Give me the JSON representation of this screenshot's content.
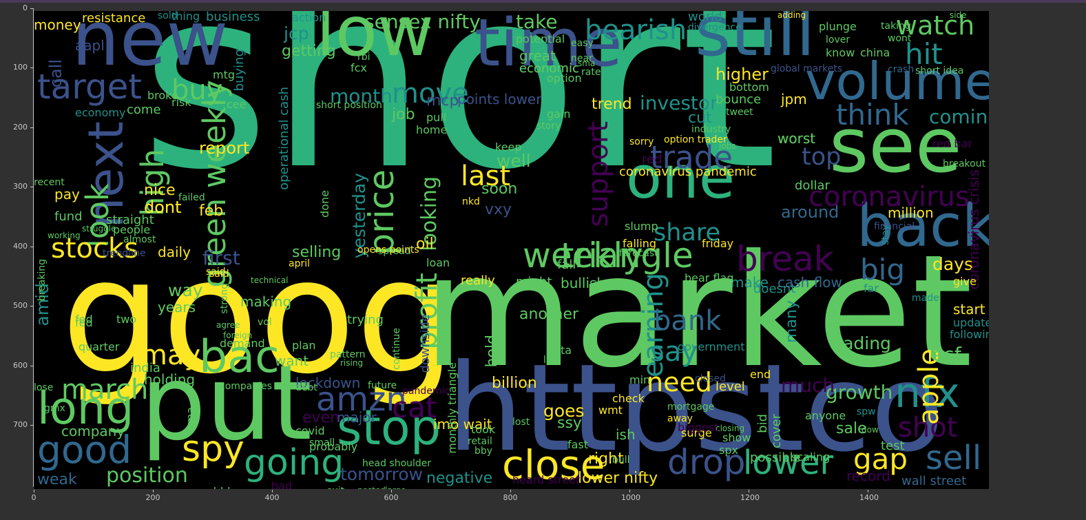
{
  "figure": {
    "background": "#000000",
    "palette": [
      "#440154",
      "#3b528b",
      "#21918c",
      "#5ec962",
      "#fde725"
    ],
    "x_ticks": [
      "0",
      "200",
      "400",
      "600",
      "800",
      "1000",
      "1200",
      "1400"
    ],
    "y_ticks": [
      "0",
      "100",
      "200",
      "300",
      "400",
      "500",
      "600",
      "700"
    ]
  },
  "words": [
    "short",
    "goog",
    "market",
    "httpstco",
    "put",
    "new",
    "low",
    "time",
    "still",
    "see",
    "one",
    "back",
    "volume",
    "next",
    "target",
    "weekly",
    "triangle",
    "stop",
    "close",
    "drop",
    "lower",
    "sell",
    "nfx",
    "amzn",
    "bac",
    "long",
    "good",
    "going",
    "spy",
    "march",
    "price",
    "profit",
    "earning",
    "support",
    "trade",
    "coronavirus",
    "break",
    "bearish",
    "watch",
    "hit",
    "think",
    "bank",
    "big",
    "shot",
    "gap",
    "apple",
    "look",
    "high",
    "green weekly",
    "buy",
    "move",
    "month",
    "stocks",
    "may",
    "position",
    "weak",
    "cat",
    "last",
    "looking",
    "sensex nifty",
    "take",
    "coming",
    "top",
    "share",
    "days",
    "say",
    "need",
    "trading",
    "growth",
    "esf",
    "lower nifty",
    "tomorrow",
    "negative",
    "right",
    "goes",
    "first",
    "daily",
    "report",
    "nice",
    "dont",
    "feb",
    "selling",
    "yesterday",
    "operational cash",
    "jcp",
    "getting",
    "money",
    "resistance",
    "investor",
    "trend",
    "cut",
    "higher",
    "worst",
    "around",
    "million",
    "coronavirus pandemic",
    "option trader",
    "cash flow",
    "make",
    "many",
    "much",
    "billion",
    "hold",
    "lockdown",
    "major",
    "even",
    "imo wait",
    "ssy",
    "wmt",
    "sale",
    "test",
    "record",
    "wall street",
    "heard street",
    "another",
    "company",
    "holding",
    "fed",
    "years",
    "making",
    "way",
    "trying",
    "vxy",
    "soon",
    "well",
    "job",
    "mcp",
    "points lower",
    "economic",
    "option",
    "great",
    "action",
    "business",
    "thing",
    "aapl",
    "call",
    "jpm",
    "bounce",
    "bottom",
    "global markets",
    "china",
    "know",
    "crash",
    "short idea",
    "fund",
    "pay",
    "recent",
    "amid",
    "coronavirus crisis",
    "update",
    "following",
    "start",
    "give",
    "made",
    "doesnt",
    "bear flag",
    "far",
    "bullish",
    "fall",
    "might",
    "really",
    "loan",
    "oil",
    "spread",
    "opens points",
    "april",
    "said",
    "friday",
    "falling",
    "forecast",
    "slump",
    "red",
    "dollar",
    "financial",
    "stay",
    "worst",
    "red bar",
    "breakout",
    "continue",
    "downside",
    "monthly triangle",
    "data",
    "list",
    "check",
    "level",
    "end",
    "closed",
    "government",
    "min",
    "india",
    "want",
    "demand",
    "plan",
    "quarter",
    "two",
    "fcx",
    "rbi",
    "potential",
    "fed",
    "economy",
    "come",
    "broke",
    "risk",
    "mtg",
    "cee",
    "buying",
    "keep",
    "gain",
    "home",
    "pull",
    "story",
    "sorry",
    "dont",
    "short position",
    "done",
    "nkd",
    "ish",
    "surge",
    "bid",
    "cover",
    "possible",
    "scaling",
    "spx",
    "show",
    "anyone",
    "spw",
    "dow",
    "lose",
    "gmx",
    "said",
    "ddd",
    "bad",
    "exit",
    "posted",
    "large",
    "fast",
    "bull",
    "bby",
    "retail",
    "took",
    "lost",
    "pattern",
    "rising",
    "future",
    "companies",
    "ema",
    "covid",
    "probably",
    "head shoulder",
    "plunge",
    "lover",
    "taking",
    "wont",
    "sold",
    "adding",
    "side",
    "world",
    "divergence",
    "near",
    "easy",
    "rate",
    "sma",
    "economic",
    "trendline",
    "failed",
    "straight",
    "people",
    "almost",
    "struggle",
    "working",
    "breaking",
    "foreign",
    "agree",
    "vol",
    "strong",
    "technical",
    "small",
    "debt",
    "mortgage",
    "closing",
    "biggest",
    "away",
    "industry",
    "tweet",
    "jobs",
    "pandemic"
  ]
}
